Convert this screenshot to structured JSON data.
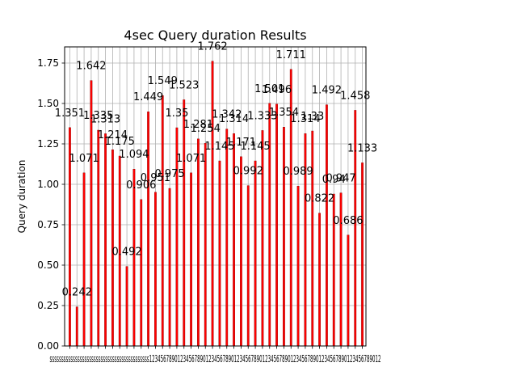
{
  "chart_data": {
    "type": "bar",
    "title": "4sec Query duration Results",
    "xlabel": "",
    "ylabel": "Query duration",
    "ylim": [
      0,
      1.85
    ],
    "grid": true,
    "bar_color": "#ff0000",
    "bar_edge_color": "#8b0000",
    "yticks": [
      "0.00",
      "0.25",
      "0.50",
      "0.75",
      "1.00",
      "1.25",
      "1.50",
      "1.75"
    ],
    "ytick_values": [
      0,
      0.25,
      0.5,
      0.75,
      1.0,
      1.25,
      1.5,
      1.75
    ],
    "xtick_text": "sssssssssssssssssssssssssssssssssssssssssss1234567890123456789012345678901234567890123456789012345678901234567890123456789012",
    "categories": [
      "s1",
      "s2",
      "s3",
      "s4",
      "s5",
      "s6",
      "s7",
      "s8",
      "s9",
      "s10",
      "s11",
      "s12",
      "s13",
      "s14",
      "s15",
      "s16",
      "s17",
      "s18",
      "s19",
      "s20",
      "s21",
      "s22",
      "s23",
      "s24",
      "s25",
      "s26",
      "s27",
      "s28",
      "s29",
      "s30",
      "s31",
      "s32",
      "s33",
      "s34",
      "s35",
      "s36",
      "s37",
      "s38",
      "s39",
      "s40",
      "s41",
      "s42"
    ],
    "values": [
      1.351,
      0.242,
      1.071,
      1.642,
      1.335,
      1.313,
      1.214,
      1.175,
      0.492,
      1.094,
      0.906,
      1.449,
      0.951,
      1.549,
      0.975,
      1.35,
      1.523,
      1.071,
      1.281,
      1.254,
      1.762,
      1.145,
      1.342,
      1.314,
      1.171,
      0.992,
      1.145,
      1.333,
      1.501,
      1.496,
      1.354,
      1.711,
      0.989,
      1.314,
      1.33,
      0.822,
      1.492,
      0.94,
      0.947,
      0.686,
      1.458,
      1.133
    ],
    "data_labels": [
      "1.351",
      "0.242",
      "1.071",
      "1.642",
      "1.335",
      "1.313",
      "1.214",
      "1.175",
      "0.492",
      "1.094",
      "0.906",
      "1.449",
      "0.951",
      "1.549",
      "0.975",
      "1.35",
      "1.523",
      "1.071",
      "1.281",
      "1.254",
      "1.762",
      "1.145",
      "1.342",
      "1.314",
      "1.171",
      "0.992",
      "1.145",
      "1.333",
      "1.501",
      "1.496",
      "1.354",
      "1.711",
      "0.989",
      "1.314",
      "1.33",
      "0.822",
      "1.492",
      "0.94",
      "0.947",
      "0.686",
      "1.458",
      "1.133"
    ]
  }
}
